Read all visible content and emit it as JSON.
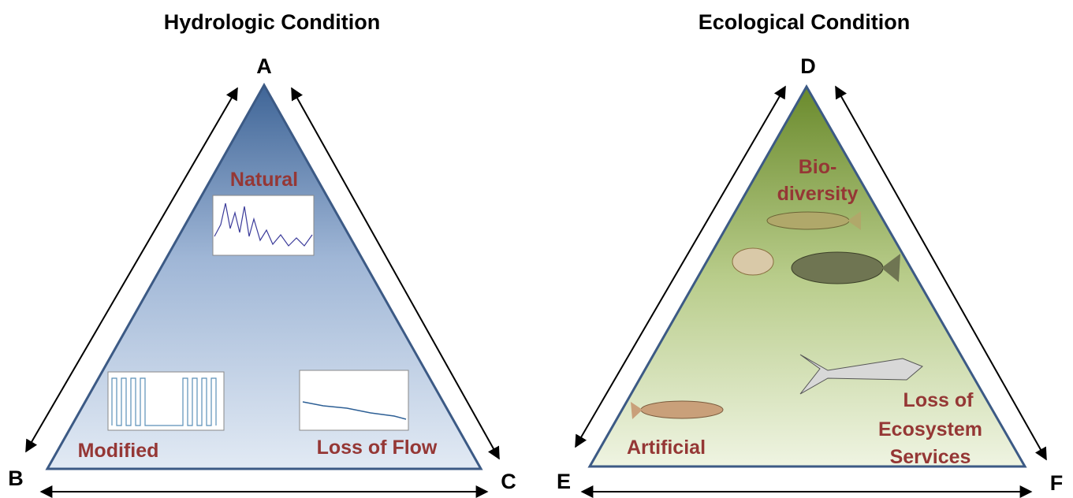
{
  "panels": [
    {
      "title": "Hydrologic Condition",
      "vertices": [
        "A",
        "B",
        "C"
      ],
      "labels": [
        [
          "Natural"
        ],
        [
          "Modified"
        ],
        [
          "Loss of Flow"
        ]
      ]
    },
    {
      "title": "Ecological Condition",
      "vertices": [
        "D",
        "E",
        "F"
      ],
      "labels": [
        [
          "Bio-",
          "diversity"
        ],
        [
          "Artificial"
        ],
        [
          "Loss of",
          "Ecosystem",
          "Services"
        ]
      ]
    }
  ]
}
